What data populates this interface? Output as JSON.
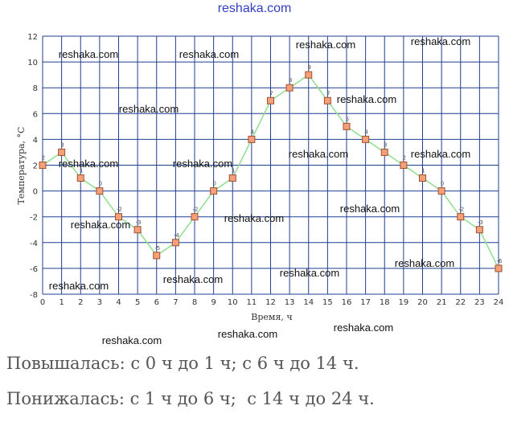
{
  "header": {
    "site": "reshaka.com"
  },
  "watermark": "reshaka.com",
  "answers": {
    "line1": "Повышалась: с 0 ч до 1 ч; с 6 ч до 14 ч.",
    "line2": "Понижалась: с 1 ч до 6 ч;  с 14 ч до 24 ч."
  },
  "colors": {
    "grid": "#1f3f8f",
    "line": "#8fdf8f",
    "marker_fill": "#f4a07a",
    "marker_stroke": "#a0522d",
    "axis_text": "#333333"
  },
  "chart_data": {
    "type": "line",
    "xlabel": "Время, ч",
    "ylabel": "Температура, °C",
    "xlim": [
      0,
      24
    ],
    "ylim": [
      -8,
      12
    ],
    "x_ticks": [
      0,
      1,
      2,
      3,
      4,
      5,
      6,
      7,
      8,
      9,
      10,
      11,
      12,
      13,
      14,
      15,
      16,
      17,
      18,
      19,
      20,
      21,
      22,
      23,
      24
    ],
    "y_ticks": [
      -8,
      -6,
      -4,
      -2,
      0,
      2,
      4,
      6,
      8,
      10,
      12
    ],
    "grid": true,
    "x": [
      0,
      1,
      2,
      3,
      4,
      5,
      6,
      7,
      8,
      9,
      10,
      11,
      12,
      13,
      14,
      15,
      16,
      17,
      18,
      19,
      20,
      21,
      22,
      23,
      24
    ],
    "values": [
      2,
      3,
      1,
      0,
      -2,
      -3,
      -5,
      -4,
      -2,
      0,
      1,
      4,
      7,
      8,
      9,
      7,
      5,
      4,
      3,
      2,
      1,
      0,
      -2,
      -3,
      -6
    ]
  }
}
